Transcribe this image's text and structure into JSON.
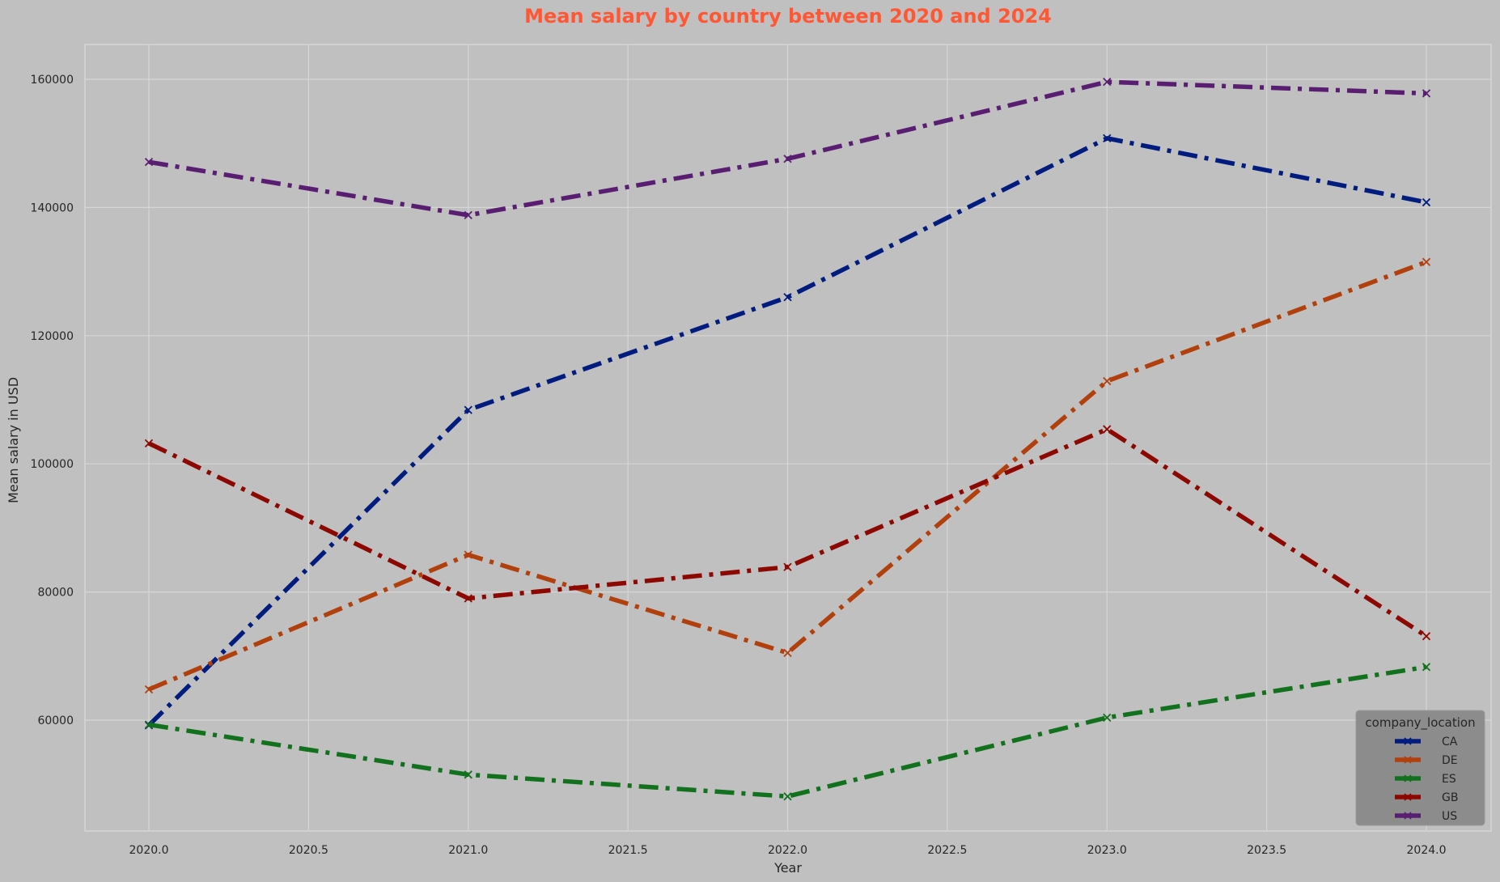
{
  "chart_data": {
    "type": "line",
    "title": "Mean salary by country between 2020 and 2024",
    "xlabel": "Year",
    "ylabel": "Mean salary in USD",
    "x": [
      2020,
      2021,
      2022,
      2023,
      2024
    ],
    "xlim": [
      2019.8,
      2024.2
    ],
    "ylim": [
      45000,
      165000
    ],
    "xticks": [
      2020.0,
      2020.5,
      2021.0,
      2021.5,
      2022.0,
      2022.5,
      2023.0,
      2023.5,
      2024.0
    ],
    "xtick_labels": [
      "2020.0",
      "2020.5",
      "2021.0",
      "2021.5",
      "2022.0",
      "2022.5",
      "2023.0",
      "2023.5",
      "2024.0"
    ],
    "yticks": [
      60000,
      80000,
      100000,
      120000,
      140000,
      160000
    ],
    "ytick_labels": [
      "60000",
      "80000",
      "100000",
      "120000",
      "140000",
      "160000"
    ],
    "grid": true,
    "legend_title": "company_location",
    "legend_position": "bottom-right",
    "line_style": "dash-dot",
    "marker": "x",
    "series": [
      {
        "name": "CA",
        "color": "#001c7f",
        "values": [
          59200,
          108400,
          126000,
          150800,
          140800
        ]
      },
      {
        "name": "DE",
        "color": "#b1400d",
        "values": [
          64800,
          85800,
          70500,
          112900,
          131500
        ]
      },
      {
        "name": "ES",
        "color": "#12711c",
        "values": [
          59300,
          51500,
          48100,
          60400,
          68300
        ]
      },
      {
        "name": "GB",
        "color": "#8c0800",
        "values": [
          103200,
          79000,
          83900,
          105400,
          73100
        ]
      },
      {
        "name": "US",
        "color": "#591e71",
        "values": [
          147100,
          138800,
          147600,
          159600,
          157800
        ]
      }
    ]
  },
  "colors": {
    "background": "#c0c0c0",
    "title": "#ff5733",
    "grid": "#d6d6d6",
    "legend_bg": "#8c8c8c",
    "text": "#262626"
  }
}
